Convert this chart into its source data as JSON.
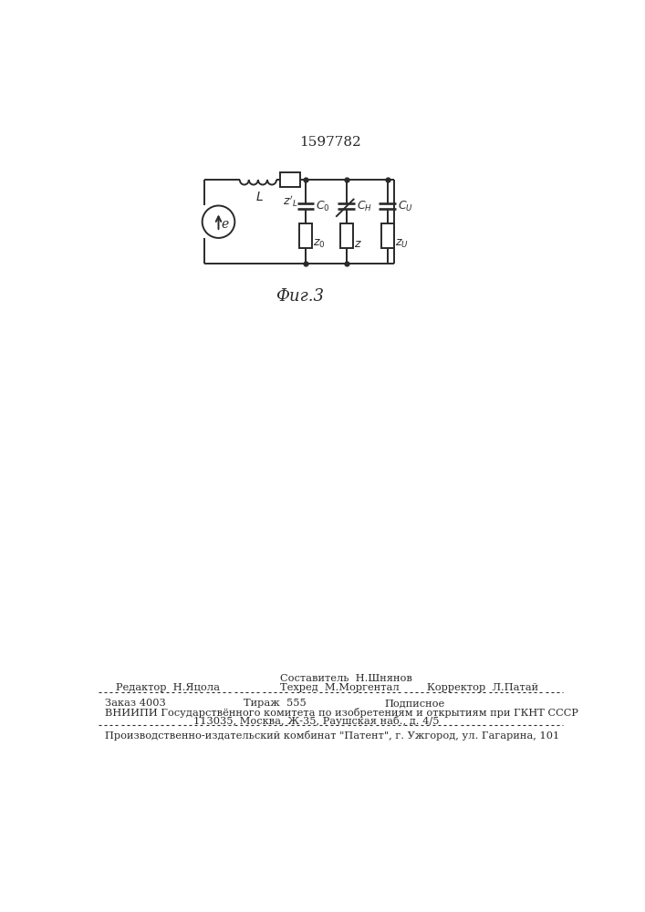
{
  "patent_number": "1597782",
  "fig_label": "Фиг.3",
  "bg_color": "#ffffff",
  "line_color": "#2a2a2a",
  "footer_sestavitel": "Составитель  Н.Шнянов",
  "footer_redaktor": "Редактор  Н.Яцола",
  "footer_tehred": "Техред  М.Моргентал",
  "footer_korrektor": "Корректор  Л.Патай",
  "footer_zakaz": "Заказ 4003",
  "footer_tirazh": "Тираж  555",
  "footer_podpisnoe": "Подписное",
  "footer_vniipи": "ВНИИПИ Государствённого комитета по изобретениям и открытиям при ГКНТ СССР",
  "footer_addr": "113035, Москва, Ж-35, Раушская наб., д. 4/5",
  "footer_kombinat": "Производственно-издательский комбинат \"Патент\", г. Ужгород, ул. Гагарина, 101"
}
